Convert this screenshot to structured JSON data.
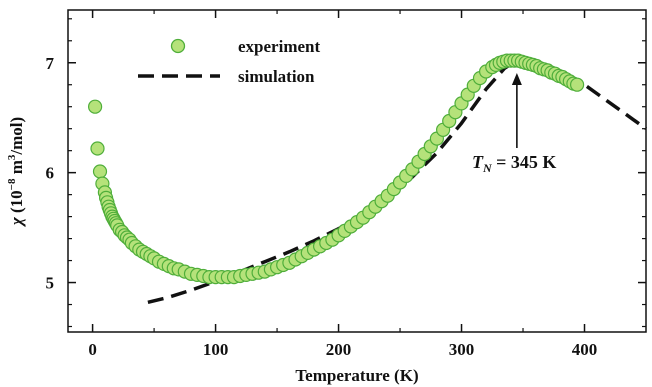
{
  "colors": {
    "marker_fill": "#b5e27a",
    "marker_stroke": "#4fae3a",
    "line": "#111111",
    "axis": "#111111"
  },
  "chart_data": {
    "type": "scatter",
    "xlabel": "Temperature (K)",
    "ylabel": {
      "symbol": "χ",
      "text_open": " (10",
      "exp1": "−8",
      "text_mid": " m",
      "exp2": "3",
      "text_close": "/mol)"
    },
    "xlim": [
      -20,
      450
    ],
    "ylim": [
      4.55,
      7.48
    ],
    "xticks": [
      0,
      100,
      200,
      300,
      400
    ],
    "yticks": [
      5,
      6,
      7
    ],
    "xtick_labels": [
      "0",
      "100",
      "200",
      "300",
      "400"
    ],
    "ytick_labels": [
      "5",
      "6",
      "7"
    ],
    "grid": false,
    "legend_position": "top-left",
    "legend": {
      "experiment": "experiment",
      "simulation": "simulation"
    },
    "annotation": {
      "prefix": "T",
      "subscript": "N",
      "suffix": " = 345 K",
      "points_to": [
        345,
        6.98
      ]
    },
    "series": [
      {
        "name": "experiment",
        "style": "markers",
        "x": [
          2,
          4,
          6,
          8,
          10,
          11,
          12,
          13,
          14,
          15,
          16,
          17,
          18,
          19,
          20,
          22,
          24,
          26,
          28,
          30,
          32,
          35,
          38,
          41,
          44,
          47,
          50,
          54,
          58,
          62,
          66,
          70,
          75,
          80,
          85,
          90,
          95,
          100,
          105,
          110,
          115,
          120,
          125,
          130,
          135,
          140,
          145,
          150,
          155,
          160,
          165,
          170,
          175,
          180,
          185,
          190,
          195,
          200,
          205,
          210,
          215,
          220,
          225,
          230,
          235,
          240,
          245,
          250,
          255,
          260,
          265,
          270,
          275,
          280,
          285,
          290,
          295,
          300,
          305,
          310,
          315,
          320,
          325,
          328,
          331,
          334,
          337,
          340,
          343,
          346,
          349,
          352,
          355,
          358,
          361,
          364,
          367,
          370,
          373,
          376,
          379,
          382,
          385,
          388,
          391,
          394
        ],
        "y": [
          6.6,
          6.22,
          6.01,
          5.9,
          5.82,
          5.77,
          5.73,
          5.69,
          5.66,
          5.63,
          5.6,
          5.58,
          5.56,
          5.54,
          5.52,
          5.48,
          5.46,
          5.43,
          5.41,
          5.39,
          5.36,
          5.33,
          5.3,
          5.28,
          5.26,
          5.24,
          5.22,
          5.19,
          5.17,
          5.15,
          5.13,
          5.12,
          5.1,
          5.08,
          5.07,
          5.06,
          5.05,
          5.05,
          5.05,
          5.05,
          5.05,
          5.06,
          5.07,
          5.08,
          5.09,
          5.1,
          5.12,
          5.14,
          5.16,
          5.18,
          5.21,
          5.24,
          5.27,
          5.3,
          5.33,
          5.36,
          5.39,
          5.43,
          5.47,
          5.51,
          5.55,
          5.59,
          5.64,
          5.69,
          5.74,
          5.79,
          5.85,
          5.91,
          5.97,
          6.03,
          6.1,
          6.17,
          6.24,
          6.31,
          6.39,
          6.47,
          6.55,
          6.63,
          6.71,
          6.79,
          6.86,
          6.92,
          6.96,
          6.98,
          7.0,
          7.01,
          7.02,
          7.02,
          7.02,
          7.02,
          7.01,
          7.0,
          6.99,
          6.98,
          6.97,
          6.95,
          6.94,
          6.93,
          6.91,
          6.9,
          6.88,
          6.87,
          6.85,
          6.83,
          6.81,
          6.8
        ]
      },
      {
        "name": "simulation",
        "style": "dashed-line",
        "x": [
          45,
          60,
          80,
          100,
          120,
          140,
          160,
          180,
          200,
          220,
          240,
          260,
          280,
          300,
          320,
          335,
          345,
          360,
          380,
          400,
          420,
          440,
          450
        ],
        "y": [
          4.82,
          4.86,
          4.93,
          5.01,
          5.1,
          5.19,
          5.28,
          5.38,
          5.49,
          5.62,
          5.77,
          5.96,
          6.18,
          6.45,
          6.76,
          6.95,
          7.02,
          7.0,
          6.92,
          6.8,
          6.64,
          6.48,
          6.4
        ]
      }
    ]
  }
}
